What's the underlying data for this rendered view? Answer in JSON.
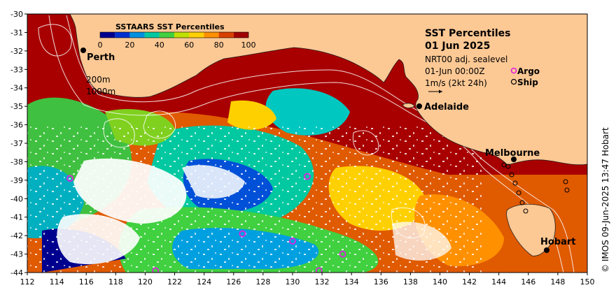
{
  "map": {
    "region": "South Australian / Great Australian Bight sea",
    "lon_range": [
      112,
      150
    ],
    "lat_range": [
      -44,
      -30
    ],
    "x_ticks": [
      "112",
      "114",
      "116",
      "118",
      "120",
      "122",
      "124",
      "126",
      "128",
      "130",
      "132",
      "134",
      "136",
      "138",
      "140",
      "142",
      "144",
      "146",
      "148",
      "150"
    ],
    "y_ticks": [
      "-30",
      "-31",
      "-32",
      "-33",
      "-34",
      "-35",
      "-36",
      "-37",
      "-38",
      "-39",
      "-40",
      "-41",
      "-42",
      "-43",
      "-44"
    ],
    "colors": {
      "land": "#fcc894",
      "ocean_base": "#a80000",
      "no_data": "#ffffff",
      "argo_marker": "#e020e0",
      "ship_marker": "#000000"
    }
  },
  "colorbar": {
    "title": "SSTAARS SST Percentiles",
    "ticks": [
      "0",
      "20",
      "40",
      "60",
      "80",
      "100"
    ],
    "colors": [
      "#00008f",
      "#0030d0",
      "#0090e0",
      "#00c8a0",
      "#40d040",
      "#c0e000",
      "#ffd000",
      "#ff9000",
      "#d84000",
      "#a00000"
    ]
  },
  "info": {
    "title": "SST Percentiles",
    "date": "01 Jun 2025",
    "model": "NRT00 adj. sealevel",
    "time": "01-Jun 00:00Z",
    "argo_label": "Argo",
    "ship_label": "Ship",
    "vector_scale": "1m/s (2kt 24h)",
    "depth_200": "200m",
    "depth_1000": "1000m"
  },
  "places": {
    "perth": "Perth",
    "adelaide": "Adelaide",
    "melbourne": "Melbourne",
    "hobart": "Hobart"
  },
  "credit": "© IMOS 09-Jun-2025 13:47 Hobart",
  "argo_floats": [
    {
      "lon": 114.9,
      "lat": -38.9
    },
    {
      "lon": 131.0,
      "lat": -38.8
    },
    {
      "lon": 126.6,
      "lat": -41.9
    },
    {
      "lon": 130.0,
      "lat": -42.3
    },
    {
      "lon": 133.4,
      "lat": -43.0
    },
    {
      "lon": 120.7,
      "lat": -43.9
    },
    {
      "lon": 131.8,
      "lat": -43.9
    }
  ]
}
